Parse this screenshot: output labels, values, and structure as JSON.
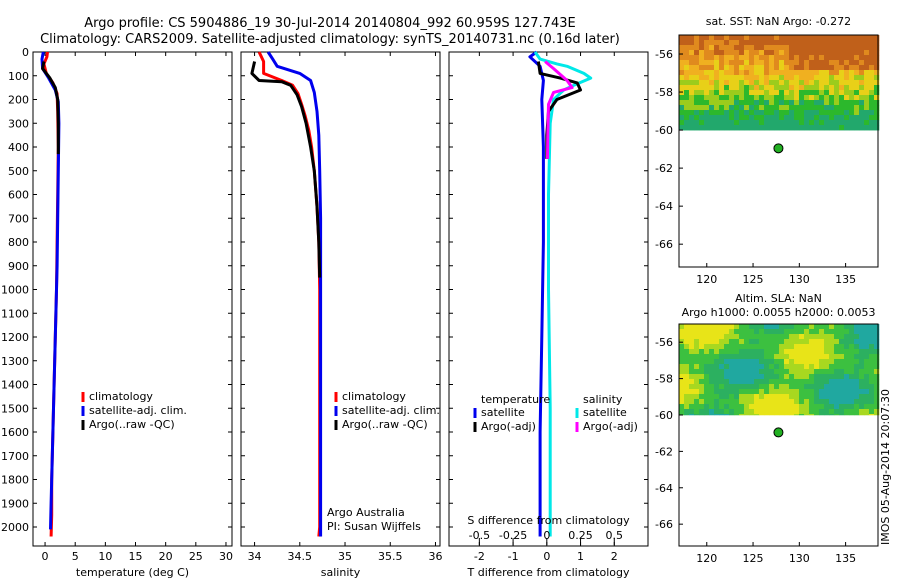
{
  "header": {
    "line1": "Argo profile: CS 5904886_19 30-Jul-2014 20140804_992 60.959S 127.743E",
    "line2": "Climatology: CARS2009. Satellite-adjusted climatology: synTS_20140731.nc (0.16d later)"
  },
  "colors": {
    "red": "#ff0000",
    "blue": "#0000ee",
    "black": "#000000",
    "cyan": "#00e8e8",
    "magenta": "#ff00ff"
  },
  "chart_data": [
    {
      "id": "temperature",
      "type": "line",
      "xlabel": "temperature (deg C)",
      "xticks": [
        "0",
        "5",
        "10",
        "15",
        "20",
        "25",
        "30"
      ],
      "xlim": [
        -2,
        31
      ],
      "ylim": [
        0,
        2080
      ],
      "yticks": [
        "0",
        "100",
        "200",
        "300",
        "400",
        "500",
        "600",
        "700",
        "800",
        "900",
        "1000",
        "1100",
        "1200",
        "1300",
        "1400",
        "1500",
        "1600",
        "1700",
        "1800",
        "1900",
        "2000"
      ],
      "legend": [
        "climatology",
        "satellite-adj. clim.",
        "Argo(..raw -QC)"
      ],
      "series": [
        {
          "color": "red",
          "points": [
            [
              0.4,
              0
            ],
            [
              0.3,
              20
            ],
            [
              -0.2,
              50
            ],
            [
              0.2,
              90
            ],
            [
              1.3,
              130
            ],
            [
              2.0,
              175
            ],
            [
              2.1,
              250
            ],
            [
              2.2,
              400
            ],
            [
              2.1,
              600
            ],
            [
              2.0,
              800
            ],
            [
              1.9,
              1000
            ],
            [
              1.7,
              1200
            ],
            [
              1.5,
              1400
            ],
            [
              1.3,
              1600
            ],
            [
              1.1,
              1800
            ],
            [
              1.1,
              1950
            ],
            [
              1.0,
              2040
            ]
          ]
        },
        {
          "color": "blue",
          "points": [
            [
              -0.3,
              0
            ],
            [
              -0.5,
              30
            ],
            [
              -0.4,
              70
            ],
            [
              0.6,
              110
            ],
            [
              1.7,
              160
            ],
            [
              2.2,
              210
            ],
            [
              2.3,
              300
            ],
            [
              2.2,
              500
            ],
            [
              2.1,
              700
            ],
            [
              2.0,
              900
            ],
            [
              1.8,
              1100
            ],
            [
              1.6,
              1300
            ],
            [
              1.4,
              1500
            ],
            [
              1.2,
              1700
            ],
            [
              1.0,
              1900
            ],
            [
              0.9,
              2010
            ]
          ]
        },
        {
          "color": "black",
          "points": [
            [
              -0.2,
              40
            ],
            [
              -0.4,
              70
            ],
            [
              0.8,
              110
            ],
            [
              1.7,
              150
            ],
            [
              2.1,
              200
            ],
            [
              2.2,
              300
            ],
            [
              2.2,
              430
            ]
          ]
        }
      ]
    },
    {
      "id": "salinity",
      "type": "line",
      "xlabel": "salinity",
      "xticks": [
        "34",
        "34.5",
        "35",
        "35.5",
        "36"
      ],
      "xlim": [
        33.85,
        36.05
      ],
      "ylim": [
        0,
        2080
      ],
      "legend": [
        "climatology",
        "satellite-adj. clim.",
        "Argo(..raw -QC)"
      ],
      "annotation": [
        "Argo Australia",
        "PI: Susan Wijffels"
      ],
      "series": [
        {
          "color": "red",
          "points": [
            [
              34.05,
              0
            ],
            [
              34.1,
              40
            ],
            [
              34.1,
              90
            ],
            [
              34.3,
              120
            ],
            [
              34.42,
              140
            ],
            [
              34.48,
              175
            ],
            [
              34.52,
              220
            ],
            [
              34.56,
              270
            ],
            [
              34.6,
              330
            ],
            [
              34.63,
              400
            ],
            [
              34.66,
              500
            ],
            [
              34.69,
              650
            ],
            [
              34.71,
              800
            ],
            [
              34.72,
              1000
            ],
            [
              34.72,
              1300
            ],
            [
              34.72,
              1600
            ],
            [
              34.72,
              2000
            ],
            [
              34.71,
              2040
            ]
          ]
        },
        {
          "color": "blue",
          "points": [
            [
              34.15,
              0
            ],
            [
              34.2,
              30
            ],
            [
              34.25,
              60
            ],
            [
              34.5,
              90
            ],
            [
              34.62,
              120
            ],
            [
              34.66,
              170
            ],
            [
              34.69,
              250
            ],
            [
              34.71,
              350
            ],
            [
              34.72,
              500
            ],
            [
              34.73,
              700
            ],
            [
              34.73,
              1000
            ],
            [
              34.73,
              1500
            ],
            [
              34.73,
              2000
            ],
            [
              34.73,
              2040
            ]
          ]
        },
        {
          "color": "black",
          "points": [
            [
              34.0,
              40
            ],
            [
              33.97,
              90
            ],
            [
              34.05,
              120
            ],
            [
              34.3,
              125
            ],
            [
              34.4,
              140
            ],
            [
              34.47,
              180
            ],
            [
              34.52,
              230
            ],
            [
              34.57,
              300
            ],
            [
              34.62,
              400
            ],
            [
              34.66,
              500
            ],
            [
              34.69,
              650
            ],
            [
              34.71,
              800
            ],
            [
              34.72,
              950
            ]
          ]
        }
      ]
    },
    {
      "id": "difference",
      "type": "line",
      "xlabel": "T difference from climatology",
      "xticks": [
        "-2",
        "-1",
        "0",
        "1",
        "2"
      ],
      "xlim": [
        -2.9,
        3.0
      ],
      "sticks": [
        "-0.5",
        "-0.25",
        "0",
        "0.25",
        "0.5"
      ],
      "stitle": "S difference from climatology",
      "ylim": [
        0,
        2080
      ],
      "legend_titles": [
        "temperature",
        "salinity"
      ],
      "legend_t": [
        "satellite",
        "Argo(-adj)"
      ],
      "legend_s": [
        "satellite",
        "Argo(-adj)"
      ],
      "series": [
        {
          "color": "blue",
          "points": [
            [
              -0.3,
              0
            ],
            [
              -0.5,
              20
            ],
            [
              -0.2,
              60
            ],
            [
              -0.1,
              120
            ],
            [
              -0.15,
              200
            ],
            [
              -0.1,
              400
            ],
            [
              -0.1,
              800
            ],
            [
              -0.15,
              1200
            ],
            [
              -0.2,
              1600
            ],
            [
              -0.2,
              2000
            ],
            [
              -0.2,
              2040
            ]
          ]
        },
        {
          "color": "cyan",
          "points": [
            [
              -0.35,
              0
            ],
            [
              -0.2,
              30
            ],
            [
              0.3,
              50
            ],
            [
              0.6,
              60
            ],
            [
              1.1,
              90
            ],
            [
              1.3,
              110
            ],
            [
              0.8,
              140
            ],
            [
              0.5,
              160
            ],
            [
              0.2,
              200
            ],
            [
              0.1,
              300
            ],
            [
              0.05,
              600
            ],
            [
              0.05,
              1000
            ],
            [
              0.1,
              1500
            ],
            [
              0.1,
              2040
            ]
          ]
        },
        {
          "color": "black",
          "points": [
            [
              -0.25,
              40
            ],
            [
              -0.2,
              90
            ],
            [
              0.4,
              110
            ],
            [
              0.9,
              130
            ],
            [
              1.0,
              160
            ],
            [
              0.3,
              200
            ],
            [
              0.05,
              250
            ],
            [
              0,
              350
            ],
            [
              0,
              450
            ]
          ]
        },
        {
          "color": "magenta",
          "points": [
            [
              -0.05,
              40
            ],
            [
              0.2,
              70
            ],
            [
              0.6,
              120
            ],
            [
              0.75,
              150
            ],
            [
              0.2,
              170
            ],
            [
              0.05,
              220
            ],
            [
              0.03,
              350
            ],
            [
              0.02,
              450
            ]
          ]
        }
      ]
    }
  ],
  "maps": [
    {
      "title": "sat. SST: NaN Argo: -0.272",
      "subtitle": "",
      "xticks": [
        "120",
        "125",
        "130",
        "135"
      ],
      "yticks": [
        "-56",
        "-58",
        "-60",
        "-62",
        "-64",
        "-66"
      ],
      "lon": [
        117,
        138.5
      ],
      "lat": [
        -55,
        -67.2
      ],
      "point": {
        "lon": 127.743,
        "lat": -60.959
      },
      "palette": "sst"
    },
    {
      "title": "Altim. SLA: NaN",
      "subtitle": "Argo h1000: 0.0055 h2000: 0.0053",
      "xticks": [
        "120",
        "125",
        "130",
        "135"
      ],
      "yticks": [
        "-56",
        "-58",
        "-60",
        "-62",
        "-64",
        "-66"
      ],
      "lon": [
        117,
        138.5
      ],
      "lat": [
        -55,
        -67.2
      ],
      "point": {
        "lon": 127.743,
        "lat": -60.959
      },
      "palette": "sla"
    }
  ],
  "footer": {
    "stamp": "IMOS 05-Aug-2014 20:07:30"
  }
}
